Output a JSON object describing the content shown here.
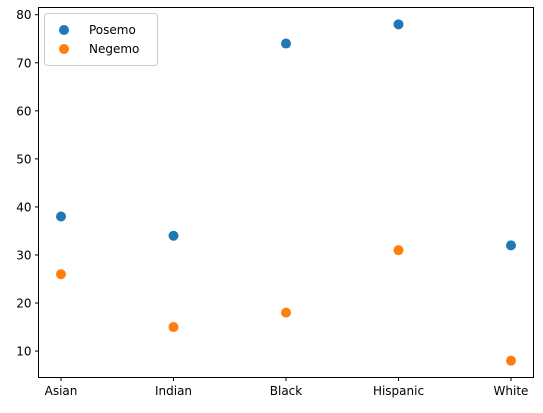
{
  "chart_data": {
    "type": "scatter",
    "title": "",
    "xlabel": "",
    "ylabel": "",
    "categories": [
      "Asian",
      "Indian",
      "Black",
      "Hispanic",
      "White"
    ],
    "series": [
      {
        "name": "Posemo",
        "color": "#1f77b4",
        "values": [
          38,
          34,
          74,
          78,
          32
        ]
      },
      {
        "name": "Negemo",
        "color": "#ff7f0e",
        "values": [
          26,
          15,
          18,
          31,
          8
        ]
      }
    ],
    "ylim": [
      4.5,
      81.5
    ],
    "yticks": [
      10,
      20,
      30,
      40,
      50,
      60,
      70,
      80
    ],
    "grid": false,
    "legend": "upper left"
  }
}
